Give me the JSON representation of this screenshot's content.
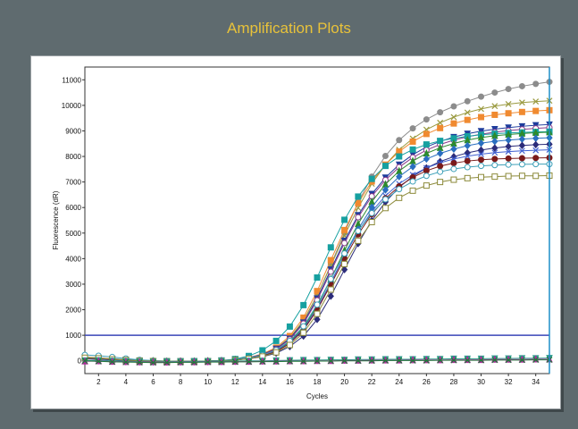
{
  "title": "Amplification Plots",
  "chart_data": {
    "type": "line",
    "title": "Amplification Plots",
    "xlabel": "Cycles",
    "ylabel": "Fluorescence (dR)",
    "xlim": [
      1,
      35
    ],
    "ylim": [
      -500,
      11500
    ],
    "x_ticks": [
      2,
      4,
      6,
      8,
      10,
      12,
      14,
      16,
      18,
      20,
      22,
      24,
      26,
      28,
      30,
      32,
      34
    ],
    "y_ticks": [
      0,
      1000,
      2000,
      3000,
      4000,
      5000,
      6000,
      7000,
      8000,
      9000,
      10000,
      11000
    ],
    "grid": true,
    "threshold": 1000,
    "threshold_color": "#3a46b8",
    "cursor_x": 35,
    "cursor_color": "#1f8fc8",
    "x": [
      1,
      2,
      3,
      4,
      5,
      6,
      7,
      8,
      9,
      10,
      11,
      12,
      13,
      14,
      15,
      16,
      17,
      18,
      19,
      20,
      21,
      22,
      23,
      24,
      25,
      26,
      27,
      28,
      29,
      30,
      31,
      32,
      33,
      34,
      35
    ],
    "series": [
      {
        "color": "#8c8c8c",
        "marker": "circle",
        "filled": true,
        "values": [
          150,
          120,
          80,
          50,
          20,
          0,
          -10,
          -20,
          -20,
          -10,
          0,
          40,
          110,
          230,
          460,
          880,
          1560,
          2550,
          3750,
          5010,
          6200,
          7210,
          8020,
          8640,
          9100,
          9450,
          9730,
          9960,
          10160,
          10340,
          10500,
          10640,
          10750,
          10840,
          10920
        ]
      },
      {
        "color": "#9a9a40",
        "marker": "cross",
        "filled": false,
        "values": [
          140,
          110,
          70,
          40,
          10,
          -10,
          -20,
          -20,
          -20,
          -10,
          0,
          40,
          120,
          250,
          480,
          900,
          1580,
          2560,
          3720,
          4900,
          5990,
          6930,
          7680,
          8260,
          8700,
          9050,
          9320,
          9540,
          9720,
          9860,
          9970,
          10050,
          10110,
          10150,
          10180
        ]
      },
      {
        "color": "#f08a30",
        "marker": "square",
        "filled": true,
        "values": [
          130,
          110,
          80,
          40,
          10,
          -10,
          -20,
          -30,
          -20,
          -10,
          0,
          50,
          130,
          270,
          520,
          970,
          1690,
          2730,
          3940,
          5120,
          6170,
          7020,
          7680,
          8190,
          8580,
          8880,
          9110,
          9290,
          9430,
          9540,
          9630,
          9690,
          9740,
          9780,
          9810
        ]
      },
      {
        "color": "#1e3c9c",
        "marker": "triangle-down",
        "filled": true,
        "values": [
          120,
          100,
          60,
          30,
          0,
          -10,
          -20,
          -20,
          -20,
          -10,
          10,
          50,
          120,
          250,
          470,
          870,
          1500,
          2440,
          3570,
          4700,
          5700,
          6530,
          7170,
          7680,
          8070,
          8370,
          8590,
          8760,
          8890,
          8990,
          9070,
          9130,
          9180,
          9220,
          9250
        ]
      },
      {
        "color": "#8a3a8a",
        "marker": "circle",
        "filled": false,
        "values": [
          110,
          90,
          60,
          30,
          0,
          -10,
          -20,
          -30,
          -20,
          -10,
          0,
          40,
          110,
          230,
          450,
          840,
          1460,
          2370,
          3490,
          4610,
          5620,
          6440,
          7080,
          7580,
          7960,
          8250,
          8470,
          8640,
          8770,
          8870,
          8950,
          9010,
          9060,
          9100,
          9130
        ]
      },
      {
        "color": "#16a0a0",
        "marker": "square",
        "filled": true,
        "values": [
          120,
          100,
          70,
          40,
          10,
          -10,
          -20,
          -20,
          -20,
          -10,
          10,
          70,
          190,
          410,
          780,
          1340,
          2180,
          3260,
          4440,
          5520,
          6430,
          7120,
          7630,
          8000,
          8270,
          8470,
          8610,
          8710,
          8790,
          8850,
          8890,
          8920,
          8940,
          8960,
          8970
        ]
      },
      {
        "color": "#2d8a2d",
        "marker": "triangle",
        "filled": true,
        "values": [
          100,
          80,
          50,
          20,
          0,
          -10,
          -20,
          -20,
          -20,
          -10,
          0,
          40,
          100,
          200,
          390,
          740,
          1300,
          2140,
          3200,
          4320,
          5360,
          6230,
          6910,
          7430,
          7820,
          8120,
          8340,
          8510,
          8640,
          8740,
          8810,
          8860,
          8900,
          8930,
          8950
        ]
      },
      {
        "color": "#2a6fc0",
        "marker": "diamond",
        "filled": true,
        "values": [
          90,
          70,
          40,
          20,
          0,
          -10,
          -20,
          -20,
          -20,
          -10,
          0,
          30,
          90,
          190,
          370,
          700,
          1230,
          2030,
          3050,
          4130,
          5150,
          6010,
          6690,
          7210,
          7600,
          7900,
          8120,
          8290,
          8420,
          8520,
          8590,
          8640,
          8680,
          8710,
          8730
        ]
      },
      {
        "color": "#2c2c7a",
        "marker": "diamond",
        "filled": true,
        "values": [
          80,
          60,
          40,
          10,
          0,
          -10,
          -20,
          -20,
          -20,
          -10,
          0,
          30,
          80,
          160,
          300,
          560,
          970,
          1620,
          2530,
          3570,
          4590,
          5490,
          6220,
          6790,
          7220,
          7550,
          7800,
          7990,
          8140,
          8250,
          8330,
          8390,
          8430,
          8460,
          8480
        ]
      },
      {
        "color": "#3f5fd0",
        "marker": "cross",
        "filled": false,
        "values": [
          100,
          80,
          50,
          20,
          0,
          -10,
          -20,
          -20,
          -20,
          -10,
          0,
          40,
          100,
          200,
          380,
          710,
          1250,
          2060,
          3070,
          4110,
          5060,
          5850,
          6460,
          6930,
          7280,
          7550,
          7750,
          7900,
          8010,
          8090,
          8150,
          8190,
          8220,
          8240,
          8260
        ]
      },
      {
        "color": "#7a1a1a",
        "marker": "circle",
        "filled": true,
        "values": [
          110,
          90,
          60,
          30,
          0,
          -10,
          -20,
          -20,
          -20,
          -10,
          0,
          30,
          90,
          190,
          360,
          680,
          1200,
          1990,
          2980,
          4000,
          4950,
          5740,
          6360,
          6830,
          7180,
          7440,
          7620,
          7740,
          7820,
          7870,
          7900,
          7920,
          7930,
          7940,
          7950
        ]
      },
      {
        "color": "#3ea0b8",
        "marker": "circle",
        "filled": false,
        "values": [
          230,
          200,
          150,
          90,
          40,
          10,
          -10,
          -20,
          -20,
          -10,
          0,
          40,
          110,
          220,
          420,
          780,
          1350,
          2200,
          3200,
          4200,
          5080,
          5780,
          6320,
          6720,
          7020,
          7240,
          7400,
          7510,
          7580,
          7630,
          7660,
          7680,
          7690,
          7700,
          7700
        ]
      },
      {
        "color": "#8c8a3a",
        "marker": "square",
        "filled": false,
        "values": [
          120,
          100,
          60,
          30,
          0,
          -10,
          -20,
          -20,
          -20,
          -10,
          0,
          30,
          80,
          170,
          330,
          620,
          1100,
          1840,
          2790,
          3790,
          4700,
          5430,
          5980,
          6380,
          6660,
          6860,
          7000,
          7090,
          7150,
          7190,
          7210,
          7230,
          7240,
          7240,
          7250
        ]
      },
      {
        "color": "#2a9a8a",
        "marker": "triangle-down",
        "filled": true,
        "values": [
          10,
          20,
          0,
          -20,
          -30,
          -40,
          -30,
          -30,
          -20,
          -20,
          -10,
          -10,
          0,
          0,
          10,
          20,
          30,
          30,
          40,
          40,
          50,
          50,
          60,
          60,
          60,
          70,
          70,
          80,
          80,
          80,
          90,
          90,
          100,
          100,
          110
        ]
      },
      {
        "color": "#b02a9a",
        "marker": "triangle",
        "filled": true,
        "values": [
          -20,
          -10,
          -30,
          -40,
          -50,
          -50,
          -60,
          -50,
          -50,
          -40,
          -40,
          -30,
          -30,
          -20,
          -20,
          -10,
          -10,
          0,
          0,
          10,
          10,
          20,
          20,
          20,
          30,
          30,
          30,
          40,
          40,
          40,
          50,
          50,
          50,
          60,
          60
        ]
      },
      {
        "color": "#1e7a3a",
        "marker": "cross",
        "filled": false,
        "values": [
          0,
          -20,
          -40,
          -50,
          -60,
          -70,
          -70,
          -60,
          -60,
          -50,
          -50,
          -40,
          -40,
          -30,
          -30,
          -20,
          -20,
          -10,
          -10,
          0,
          0,
          0,
          10,
          10,
          10,
          10,
          20,
          20,
          20,
          20,
          30,
          30,
          30,
          40,
          40
        ]
      }
    ]
  }
}
